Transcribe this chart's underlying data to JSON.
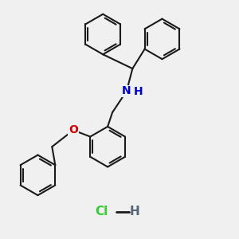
{
  "background_color": "#f0f0f0",
  "bond_color": "#1a1a1a",
  "N_color": "#0000cc",
  "O_color": "#cc0000",
  "Cl_color": "#33cc33",
  "H_hcl_color": "#556677",
  "line_width": 1.5,
  "figsize": [
    3.0,
    3.0
  ],
  "dpi": 100,
  "xlim": [
    0,
    10
  ],
  "ylim": [
    0,
    10
  ]
}
